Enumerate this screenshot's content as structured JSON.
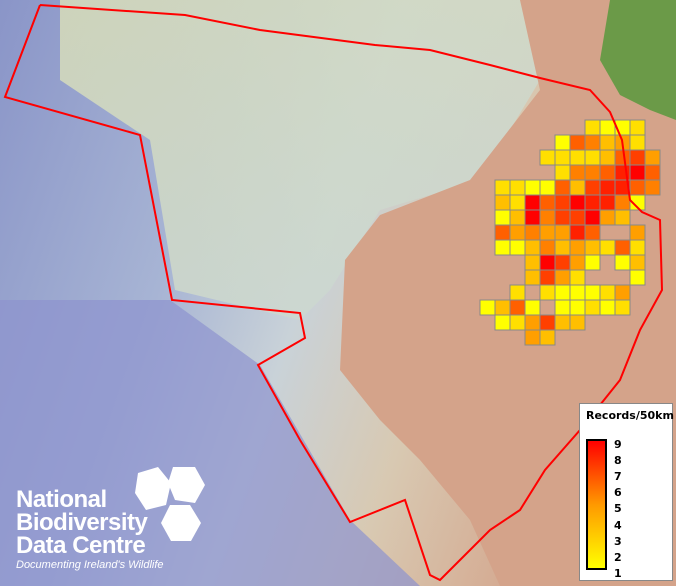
{
  "legend": {
    "title": "Records/50km",
    "ticks": [
      "9",
      "8",
      "7",
      "6",
      "5",
      "4",
      "3",
      "2",
      "1"
    ],
    "color_min": "#ffff00",
    "color_mid": "#ff9900",
    "color_max": "#ff0000"
  },
  "logo": {
    "line1": "National",
    "line2": "Biodiversity",
    "line3": "Data Centre",
    "tagline": "Documenting Ireland's Wildlife"
  },
  "boundary_color": "#ff0000",
  "grid_rows": [
    {
      "start": 7,
      "values": [
        2,
        1,
        1,
        2
      ]
    },
    {
      "start": 5,
      "values": [
        1,
        6,
        5,
        3,
        4,
        2
      ]
    },
    {
      "start": 4,
      "values": [
        2,
        2,
        2,
        2,
        3,
        6,
        7,
        4
      ]
    },
    {
      "start": 5,
      "values": [
        2,
        5,
        5,
        6,
        8,
        9,
        6
      ]
    },
    {
      "start": 1,
      "values": [
        2,
        2,
        1,
        1,
        6,
        3,
        7,
        8,
        8,
        6,
        5
      ]
    },
    {
      "start": 1,
      "values": [
        3,
        2,
        9,
        6,
        7,
        9,
        8,
        8,
        5,
        1
      ]
    },
    {
      "start": 1,
      "values": [
        1,
        3,
        9,
        5,
        7,
        7,
        9,
        4,
        3
      ]
    },
    {
      "start": 1,
      "values": [
        6,
        4,
        5,
        4,
        4,
        8,
        6,
        null,
        null,
        4
      ]
    },
    {
      "start": 1,
      "values": [
        1,
        1,
        3,
        5,
        3,
        4,
        3,
        2,
        6,
        2
      ]
    },
    {
      "start": 3,
      "values": [
        3,
        9,
        7,
        4,
        1,
        null,
        1,
        3
      ]
    },
    {
      "start": 3,
      "values": [
        3,
        7,
        4,
        2,
        null,
        null,
        null,
        1
      ]
    },
    {
      "start": 2,
      "values": [
        2,
        null,
        2,
        1,
        1,
        1,
        2,
        4
      ]
    },
    {
      "start": 0,
      "values": [
        1,
        3,
        6,
        1,
        null,
        1,
        1,
        2,
        1,
        2
      ]
    },
    {
      "start": 1,
      "values": [
        1,
        2,
        4,
        7,
        3,
        3
      ]
    },
    {
      "start": 3,
      "values": [
        4,
        3
      ]
    }
  ]
}
